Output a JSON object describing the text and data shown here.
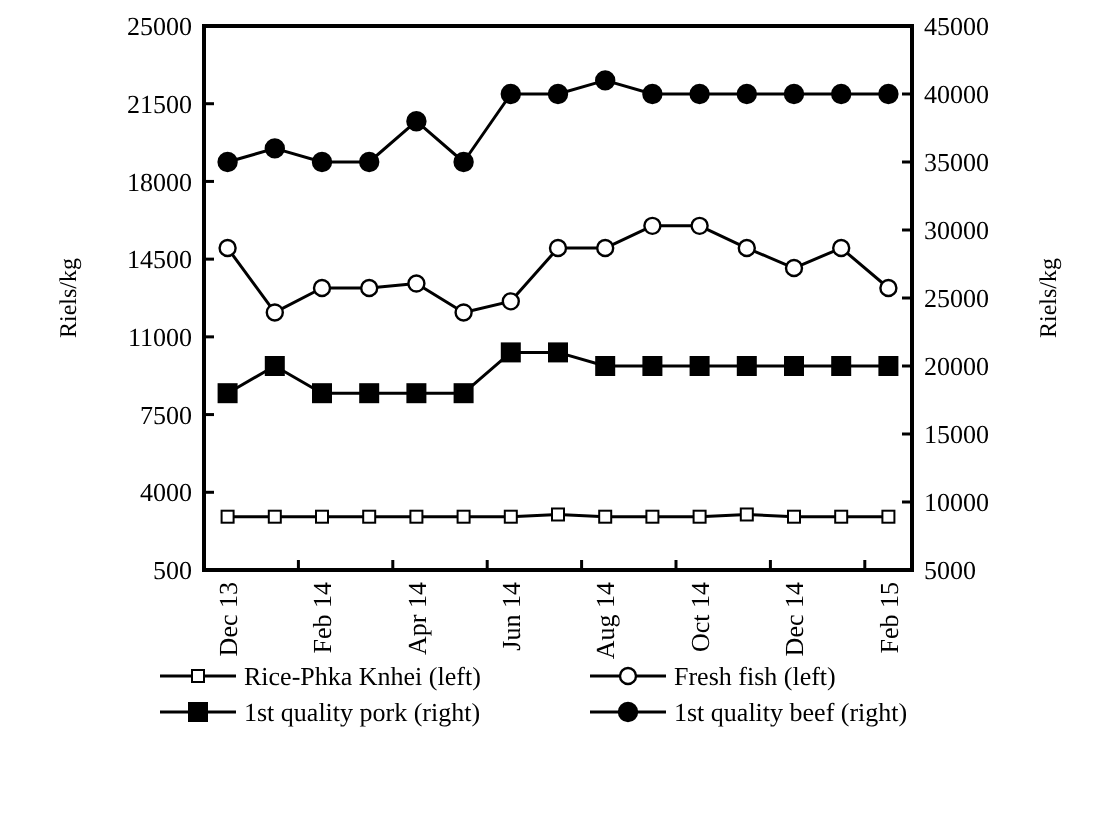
{
  "chart_data": {
    "type": "line",
    "ylabel": "Riels/kg",
    "y2label": "Riels/kg",
    "categories": [
      "Dec 13",
      null,
      "Feb 14",
      null,
      "Apr 14",
      null,
      "Jun 14",
      null,
      "Aug 14",
      null,
      "Oct 14",
      null,
      "Dec 14",
      null,
      "Feb 15"
    ],
    "series": [
      {
        "name": "Rice-Phka Knhei (left)",
        "color": "#000000",
        "marker": "square",
        "values": [
          2900,
          2900,
          2900,
          2900,
          2900,
          2900,
          2900,
          3000,
          2900,
          2900,
          2900,
          3000,
          2900,
          2900,
          2900
        ]
      },
      {
        "name": "Fresh fish (left)",
        "color": "#000000",
        "marker": "circle",
        "values": [
          15000,
          12100,
          13200,
          13200,
          13400,
          12100,
          12600,
          15000,
          15000,
          16000,
          16000,
          15000,
          14100,
          15000,
          13200
        ]
      },
      {
        "name": "1st quality pork (right)",
        "color": "#000000",
        "marker": "square",
        "axis": "y2",
        "values": [
          18000,
          20000,
          18000,
          18000,
          18000,
          18000,
          21000,
          21000,
          20000,
          20000,
          20000,
          20000,
          20000,
          20000,
          20000
        ]
      },
      {
        "name": "1st quality beef (right)",
        "color": "#000000",
        "marker": "circle",
        "axis": "y2",
        "values": [
          35000,
          36000,
          35000,
          35000,
          38000,
          35000,
          40000,
          40000,
          41000,
          40000,
          40000,
          40000,
          40000,
          40000,
          40000
        ]
      }
    ],
    "ylim": [
      500,
      25000
    ],
    "yticks": [
      500,
      4000,
      7500,
      11000,
      14500,
      18000,
      21500,
      25000
    ],
    "y2lim": [
      5000,
      45000
    ],
    "y2ticks": [
      5000,
      10000,
      15000,
      20000,
      25000,
      30000,
      35000,
      40000,
      45000
    ],
    "grid": false,
    "legend": "bottom",
    "line_style": "solid"
  }
}
